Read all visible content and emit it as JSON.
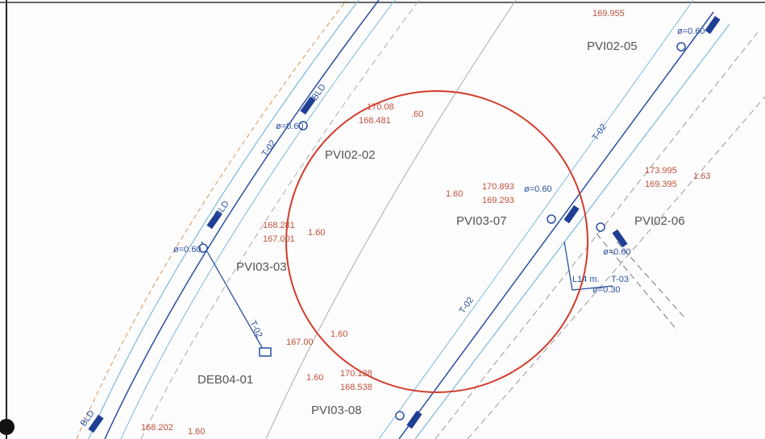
{
  "nodes": [
    "PVI02-05",
    "PVI02-02",
    "PVI03-03",
    "DEB04-01",
    "PVI03-08",
    "PVI03-07",
    "PVI02-06"
  ],
  "elevations": [
    {
      "top": "170.08",
      "bottom": "168.481",
      "depth": ".60"
    },
    {
      "top": "168.281",
      "bottom": "167.001",
      "depth": "1.60"
    },
    {
      "top": "170.893",
      "bottom": "169.293",
      "depth": "1.60"
    },
    {
      "top": "173.995",
      "bottom": "169.395",
      "depth": "1.63"
    },
    {
      "top": "167.00",
      "depth": "1.60"
    },
    {
      "top": "170.138",
      "bottom": "168.538",
      "depth": "1.60"
    },
    {
      "top": "168.202",
      "depth": "1.60"
    },
    {
      "top": "169.955"
    }
  ],
  "annotations": [
    "T-02",
    "T-02",
    "T-02",
    "T-02",
    "ø=0.60",
    "ø=0.60",
    "ø=0.60",
    "ø=0.60",
    "ø=0.60",
    "ø=0.30",
    "L14 m.",
    "T-03",
    "BLD",
    "BLD",
    "BLD"
  ]
}
